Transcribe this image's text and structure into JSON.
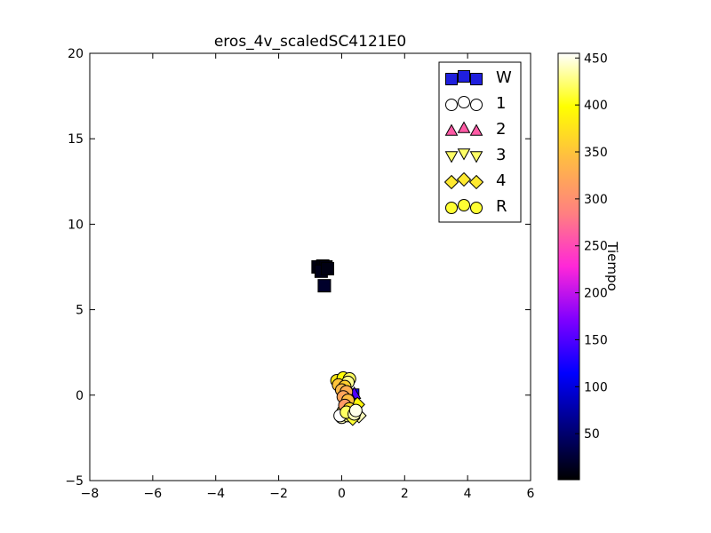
{
  "chart_data": {
    "type": "scatter",
    "title": "eros_4v_scaledSC4121E0",
    "xlabel": "",
    "ylabel": "",
    "xlim": [
      -8,
      6
    ],
    "ylim": [
      -5,
      20
    ],
    "xticks": [
      -8,
      -6,
      -4,
      -2,
      0,
      2,
      4,
      6
    ],
    "yticks": [
      -5,
      0,
      5,
      10,
      15,
      20
    ],
    "grid": false,
    "legend_position": "top-right",
    "colorbar": {
      "label": "Tiempo",
      "range": [
        1,
        455
      ],
      "ticks": [
        50,
        100,
        150,
        200,
        250,
        300,
        350,
        400,
        450
      ],
      "colormap": "gnuplot2",
      "stops": [
        "#000000",
        "#00007f",
        "#0000ff",
        "#7f00ff",
        "#ff27d8",
        "#ff8080",
        "#ffba45",
        "#ffff00",
        "#ffffff"
      ]
    },
    "series": [
      {
        "name": "W",
        "marker": "square",
        "color": "#1f1fdd",
        "points": [
          {
            "x": -0.75,
            "y": 7.5,
            "t": 8
          },
          {
            "x": -0.6,
            "y": 7.55,
            "t": 6
          },
          {
            "x": -0.5,
            "y": 7.5,
            "t": 10
          },
          {
            "x": -0.65,
            "y": 7.25,
            "t": 12
          },
          {
            "x": -0.55,
            "y": 6.4,
            "t": 20
          },
          {
            "x": -0.45,
            "y": 7.4,
            "t": 9
          },
          {
            "x": 0.35,
            "y": 0.0,
            "t": 120
          },
          {
            "x": 0.3,
            "y": -0.3,
            "t": 60
          }
        ]
      },
      {
        "name": "1",
        "marker": "circle",
        "color": "#ffffff",
        "points": [
          {
            "x": 0.0,
            "y": -1.3,
            "t": 440
          },
          {
            "x": 0.2,
            "y": -1.2,
            "t": 430
          },
          {
            "x": 0.05,
            "y": -0.95,
            "t": 420
          },
          {
            "x": 0.3,
            "y": -1.05,
            "t": 450
          },
          {
            "x": -0.05,
            "y": -1.2,
            "t": 455
          }
        ]
      },
      {
        "name": "2",
        "marker": "triangle-up",
        "color": "#ff5aa5",
        "points": [
          {
            "x": 0.4,
            "y": 0.1,
            "t": 150
          },
          {
            "x": 0.3,
            "y": -0.2,
            "t": 110
          }
        ]
      },
      {
        "name": "3",
        "marker": "triangle-down",
        "color": "#ffff66",
        "points": [
          {
            "x": 0.35,
            "y": -0.5,
            "t": 300
          },
          {
            "x": 0.45,
            "y": -0.9,
            "t": 420
          },
          {
            "x": 0.2,
            "y": -0.7,
            "t": 380
          }
        ]
      },
      {
        "name": "4",
        "marker": "diamond",
        "color": "#ffe930",
        "points": [
          {
            "x": 0.55,
            "y": -1.2,
            "t": 440
          },
          {
            "x": 0.35,
            "y": -1.35,
            "t": 410
          },
          {
            "x": 0.5,
            "y": -0.55,
            "t": 390
          }
        ]
      },
      {
        "name": "R",
        "marker": "circle",
        "color": "#ffff33",
        "points": [
          {
            "x": -0.15,
            "y": 0.85,
            "t": 380
          },
          {
            "x": 0.05,
            "y": 1.0,
            "t": 400
          },
          {
            "x": 0.25,
            "y": 0.95,
            "t": 420
          },
          {
            "x": 0.2,
            "y": 0.75,
            "t": 430
          },
          {
            "x": -0.1,
            "y": 0.6,
            "t": 350
          },
          {
            "x": 0.1,
            "y": 0.5,
            "t": 360
          },
          {
            "x": 0.0,
            "y": 0.3,
            "t": 340
          },
          {
            "x": 0.15,
            "y": 0.2,
            "t": 330
          },
          {
            "x": 0.05,
            "y": -0.1,
            "t": 320
          },
          {
            "x": 0.2,
            "y": -0.3,
            "t": 345
          },
          {
            "x": 0.1,
            "y": -0.6,
            "t": 310
          },
          {
            "x": 0.25,
            "y": -0.8,
            "t": 370
          },
          {
            "x": 0.15,
            "y": -1.0,
            "t": 420
          },
          {
            "x": 0.4,
            "y": -1.1,
            "t": 440
          },
          {
            "x": 0.45,
            "y": -0.9,
            "t": 450
          }
        ]
      }
    ]
  }
}
